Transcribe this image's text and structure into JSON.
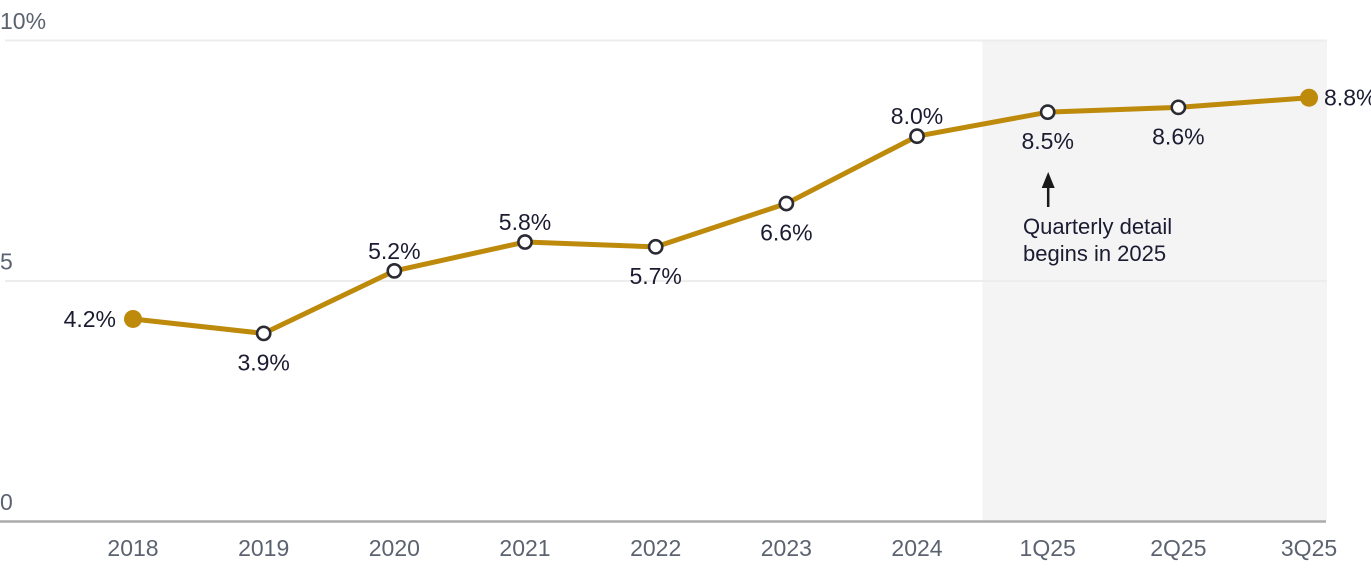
{
  "chart_data": {
    "type": "line",
    "title": "",
    "categories": [
      "2018",
      "2019",
      "2020",
      "2021",
      "2022",
      "2023",
      "2024",
      "1Q25",
      "2Q25",
      "3Q25"
    ],
    "values": [
      4.2,
      3.9,
      5.2,
      5.8,
      5.7,
      6.6,
      8.0,
      8.5,
      8.6,
      8.8
    ],
    "data_labels": [
      "4.2%",
      "3.9%",
      "5.2%",
      "5.8%",
      "5.7%",
      "6.6%",
      "8.0%",
      "8.5%",
      "8.6%",
      "8.8%"
    ],
    "label_positions": [
      "left",
      "below",
      "above",
      "above",
      "below",
      "below",
      "above",
      "below",
      "below",
      "right"
    ],
    "ylim": [
      0,
      10
    ],
    "y_ticks": [
      {
        "value": 10,
        "label": "10%"
      },
      {
        "value": 5,
        "label": "5"
      },
      {
        "value": 0,
        "label": "0"
      }
    ],
    "grid": "horizontal",
    "legend": "none",
    "marker_style": {
      "filled_indexes": [
        0,
        9
      ],
      "interior": "open-circle"
    },
    "shaded_region": {
      "covers": [
        "1Q25",
        "2Q25",
        "3Q25"
      ],
      "starts_between": [
        "2024",
        "1Q25"
      ]
    },
    "annotation": {
      "line1": "Quarterly detail",
      "line2": "begins in 2025",
      "arrow": "up",
      "points_to": "1Q25 8.5%"
    }
  },
  "colors": {
    "background": "#FFFFFF",
    "line": "#BD8A0B",
    "marker_ring": "#2B2B33",
    "marker_fill": "#FFFFFF",
    "data_label": "#1B1B31",
    "tick_label": "#5C6370",
    "gridline": "#EDEDED",
    "axis_line": "#ABABAB",
    "shade": "#F4F4F4",
    "annotation_text": "#1B1B31",
    "arrow": "#1A1A1A"
  }
}
